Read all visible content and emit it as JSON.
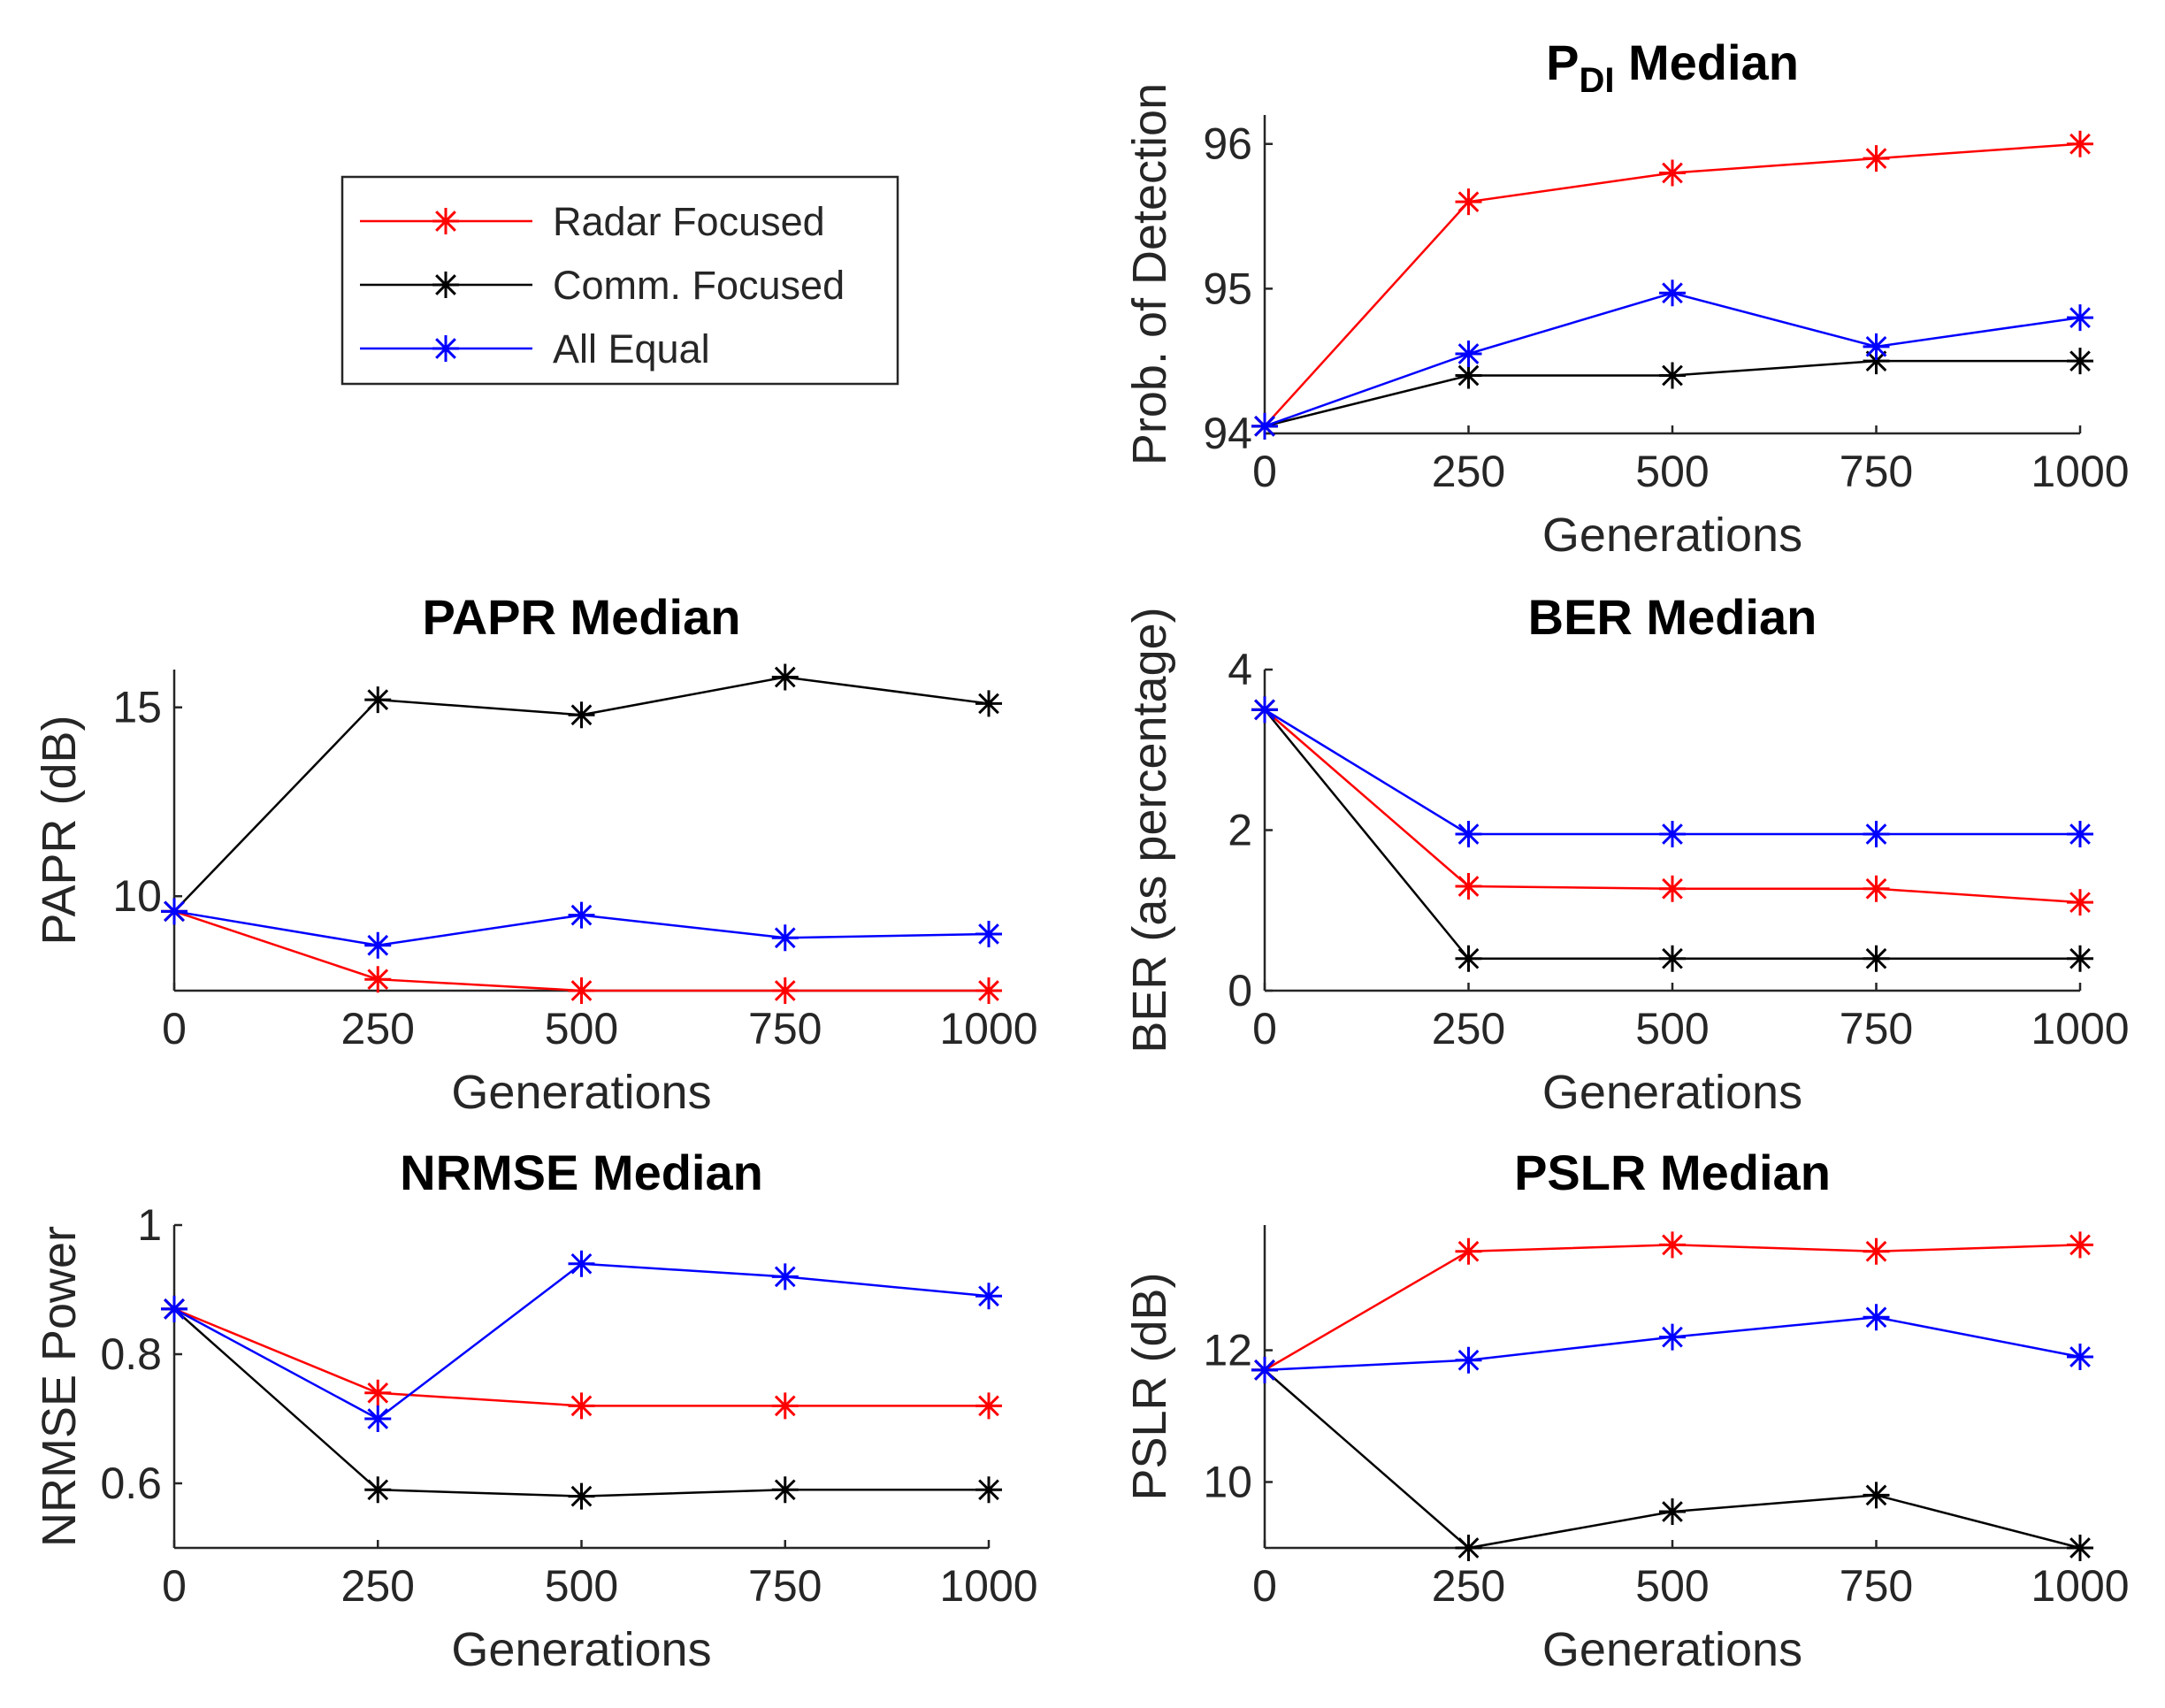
{
  "colors": {
    "radar": "#ff0000",
    "comm": "#000000",
    "equal": "#0000ff",
    "axis": "#262626"
  },
  "legend": {
    "entries": [
      {
        "key": "radar",
        "label": "Radar Focused"
      },
      {
        "key": "comm",
        "label": "Comm. Focused"
      },
      {
        "key": "equal",
        "label": "All Equal"
      }
    ]
  },
  "chart_data": [
    {
      "id": "pdi",
      "type": "line",
      "title_main": "P",
      "title_sub": "DI",
      "title_rest": " Median",
      "xlabel": "Generations",
      "ylabel": "Prob. of Detection",
      "x": [
        0,
        250,
        500,
        750,
        1000
      ],
      "xlim": [
        0,
        1000
      ],
      "ylim": [
        94,
        96.2
      ],
      "xticks": [
        "0",
        "250",
        "500",
        "750",
        "1000"
      ],
      "yticks": [
        94,
        95,
        96
      ],
      "ytick_labels": [
        "94",
        "95",
        "96"
      ],
      "series": [
        {
          "key": "radar",
          "name": "Radar Focused",
          "values": [
            94.05,
            95.6,
            95.8,
            95.9,
            96.0
          ]
        },
        {
          "key": "comm",
          "name": "Comm. Focused",
          "values": [
            94.05,
            94.4,
            94.4,
            94.5,
            94.5
          ]
        },
        {
          "key": "equal",
          "name": "All Equal",
          "values": [
            94.05,
            94.55,
            94.97,
            94.6,
            94.8
          ]
        }
      ]
    },
    {
      "id": "papr",
      "type": "line",
      "title": "PAPR Median",
      "xlabel": "Generations",
      "ylabel": "PAPR (dB)",
      "x": [
        0,
        250,
        500,
        750,
        1000
      ],
      "xlim": [
        0,
        1000
      ],
      "ylim": [
        7.5,
        16
      ],
      "xticks": [
        "0",
        "250",
        "500",
        "750",
        "1000"
      ],
      "yticks": [
        10,
        15
      ],
      "ytick_labels": [
        "10",
        "15"
      ],
      "series": [
        {
          "key": "radar",
          "name": "Radar Focused",
          "values": [
            9.6,
            7.8,
            7.5,
            7.5,
            7.5
          ]
        },
        {
          "key": "comm",
          "name": "Comm. Focused",
          "values": [
            9.6,
            15.2,
            14.8,
            15.8,
            15.1
          ]
        },
        {
          "key": "equal",
          "name": "All Equal",
          "values": [
            9.6,
            8.7,
            9.5,
            8.9,
            9.0
          ]
        }
      ]
    },
    {
      "id": "ber",
      "type": "line",
      "title": "BER Median",
      "xlabel": "Generations",
      "ylabel": "BER (as percentage)",
      "x": [
        0,
        250,
        500,
        750,
        1000
      ],
      "xlim": [
        0,
        1000
      ],
      "ylim": [
        0,
        4
      ],
      "xticks": [
        "0",
        "250",
        "500",
        "750",
        "1000"
      ],
      "yticks": [
        0,
        2,
        4
      ],
      "ytick_labels": [
        "0",
        "2",
        "4"
      ],
      "series": [
        {
          "key": "radar",
          "name": "Radar Focused",
          "values": [
            3.5,
            1.3,
            1.27,
            1.27,
            1.1
          ]
        },
        {
          "key": "comm",
          "name": "Comm. Focused",
          "values": [
            3.5,
            0.4,
            0.4,
            0.4,
            0.4
          ]
        },
        {
          "key": "equal",
          "name": "All Equal",
          "values": [
            3.5,
            1.95,
            1.95,
            1.95,
            1.95
          ]
        }
      ]
    },
    {
      "id": "nrmse",
      "type": "line",
      "title": "NRMSE Median",
      "xlabel": "Generations",
      "ylabel": "NRMSE Power",
      "x": [
        0,
        250,
        500,
        750,
        1000
      ],
      "xlim": [
        0,
        1000
      ],
      "ylim": [
        0.5,
        1.0
      ],
      "xticks": [
        "0",
        "250",
        "500",
        "750",
        "1000"
      ],
      "yticks": [
        0.6,
        0.8,
        1.0
      ],
      "ytick_labels": [
        "0.6",
        "0.8",
        "1"
      ],
      "series": [
        {
          "key": "radar",
          "name": "Radar Focused",
          "values": [
            0.87,
            0.74,
            0.72,
            0.72,
            0.72
          ]
        },
        {
          "key": "comm",
          "name": "Comm. Focused",
          "values": [
            0.87,
            0.59,
            0.58,
            0.59,
            0.59
          ]
        },
        {
          "key": "equal",
          "name": "All Equal",
          "values": [
            0.87,
            0.7,
            0.94,
            0.92,
            0.89
          ]
        }
      ]
    },
    {
      "id": "pslr",
      "type": "line",
      "title": "PSLR Median",
      "xlabel": "Generations",
      "ylabel": "PSLR (dB)",
      "x": [
        0,
        250,
        500,
        750,
        1000
      ],
      "xlim": [
        0,
        1000
      ],
      "ylim": [
        9,
        13.9
      ],
      "xticks": [
        "0",
        "250",
        "500",
        "750",
        "1000"
      ],
      "yticks": [
        10,
        12
      ],
      "ytick_labels": [
        "10",
        "12"
      ],
      "series": [
        {
          "key": "radar",
          "name": "Radar Focused",
          "values": [
            11.7,
            13.5,
            13.6,
            13.5,
            13.6
          ]
        },
        {
          "key": "comm",
          "name": "Comm. Focused",
          "values": [
            11.7,
            9.0,
            9.55,
            9.8,
            9.0
          ]
        },
        {
          "key": "equal",
          "name": "All Equal",
          "values": [
            11.7,
            11.85,
            12.2,
            12.5,
            11.9
          ]
        }
      ]
    }
  ]
}
